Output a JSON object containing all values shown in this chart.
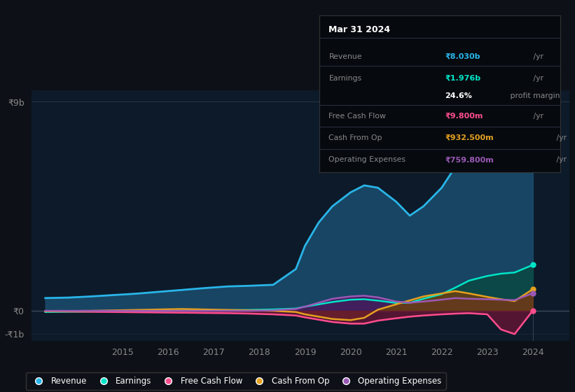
{
  "bg_color": "#0d1117",
  "plot_bg_color": "#0d1a2a",
  "grid_color": "#2a3a4a",
  "text_color": "#888888",
  "years": [
    2013.3,
    2013.8,
    2014.3,
    2014.8,
    2015.3,
    2015.8,
    2016.3,
    2016.8,
    2017.3,
    2017.8,
    2018.3,
    2018.8,
    2019.0,
    2019.3,
    2019.6,
    2020.0,
    2020.3,
    2020.6,
    2021.0,
    2021.3,
    2021.6,
    2022.0,
    2022.3,
    2022.6,
    2023.0,
    2023.3,
    2023.6,
    2024.0
  ],
  "revenue": [
    0.55,
    0.57,
    0.62,
    0.68,
    0.74,
    0.82,
    0.9,
    0.98,
    1.05,
    1.08,
    1.12,
    1.8,
    2.8,
    3.8,
    4.5,
    5.1,
    5.4,
    5.3,
    4.7,
    4.1,
    4.5,
    5.3,
    6.2,
    7.0,
    7.5,
    7.8,
    7.4,
    8.03
  ],
  "earnings": [
    -0.05,
    -0.04,
    -0.03,
    -0.02,
    -0.01,
    0.0,
    0.01,
    0.02,
    0.03,
    0.04,
    0.06,
    0.1,
    0.18,
    0.28,
    0.38,
    0.48,
    0.5,
    0.44,
    0.34,
    0.35,
    0.52,
    0.72,
    1.0,
    1.3,
    1.5,
    1.6,
    1.65,
    1.976
  ],
  "free_cash_flow": [
    -0.02,
    -0.03,
    -0.04,
    -0.05,
    -0.06,
    -0.07,
    -0.08,
    -0.09,
    -0.1,
    -0.12,
    -0.15,
    -0.2,
    -0.28,
    -0.38,
    -0.48,
    -0.55,
    -0.55,
    -0.42,
    -0.32,
    -0.25,
    -0.2,
    -0.15,
    -0.12,
    -0.1,
    -0.15,
    -0.8,
    -1.0,
    0.0098
  ],
  "cash_from_op": [
    -0.02,
    -0.01,
    0.0,
    0.02,
    0.04,
    0.06,
    0.08,
    0.06,
    0.04,
    0.02,
    0.0,
    -0.05,
    -0.15,
    -0.25,
    -0.35,
    -0.4,
    -0.3,
    0.05,
    0.28,
    0.45,
    0.62,
    0.75,
    0.85,
    0.75,
    0.6,
    0.5,
    0.42,
    0.9325
  ],
  "operating_expenses": [
    0.0,
    0.0,
    0.0,
    0.0,
    0.0,
    0.0,
    0.0,
    0.0,
    0.0,
    0.0,
    0.02,
    0.08,
    0.18,
    0.35,
    0.52,
    0.62,
    0.65,
    0.58,
    0.4,
    0.35,
    0.4,
    0.48,
    0.55,
    0.52,
    0.5,
    0.48,
    0.46,
    0.7598
  ],
  "revenue_color": "#29b5e8",
  "earnings_color": "#00e5c8",
  "free_cash_flow_color": "#ff4d8d",
  "cash_from_op_color": "#e5a020",
  "operating_expenses_color": "#9b59b6",
  "revenue_fill": "#1a4a6a",
  "earnings_fill": "#0a4a40",
  "free_cash_flow_fill": "#6a1535",
  "cash_from_op_fill": "#6a4010",
  "operating_expenses_fill": "#4a1860",
  "ylim_min": -1.3,
  "ylim_max": 9.5,
  "xtick_years": [
    2015,
    2016,
    2017,
    2018,
    2019,
    2020,
    2021,
    2022,
    2023,
    2024
  ],
  "tooltip_title": "Mar 31 2024",
  "highlight_x": 2024.0,
  "legend_labels": [
    "Revenue",
    "Earnings",
    "Free Cash Flow",
    "Cash From Op",
    "Operating Expenses"
  ],
  "legend_colors": [
    "#29b5e8",
    "#00e5c8",
    "#ff4d8d",
    "#e5a020",
    "#9b59b6"
  ],
  "tooltip_rows": [
    {
      "label": "Revenue",
      "value": "₹8.030b",
      "unit": " /yr",
      "color": "#29b5e8"
    },
    {
      "label": "Earnings",
      "value": "₹1.976b",
      "unit": " /yr",
      "color": "#00e5c8"
    },
    {
      "label": "",
      "value": "24.6%",
      "unit": " profit margin",
      "color": "#ffffff"
    },
    {
      "label": "Free Cash Flow",
      "value": "₹9.800m",
      "unit": " /yr",
      "color": "#ff4d8d"
    },
    {
      "label": "Cash From Op",
      "value": "₹932.500m",
      "unit": " /yr",
      "color": "#e5a020"
    },
    {
      "label": "Operating Expenses",
      "value": "₹759.800m",
      "unit": " /yr",
      "color": "#9b59b6"
    }
  ]
}
